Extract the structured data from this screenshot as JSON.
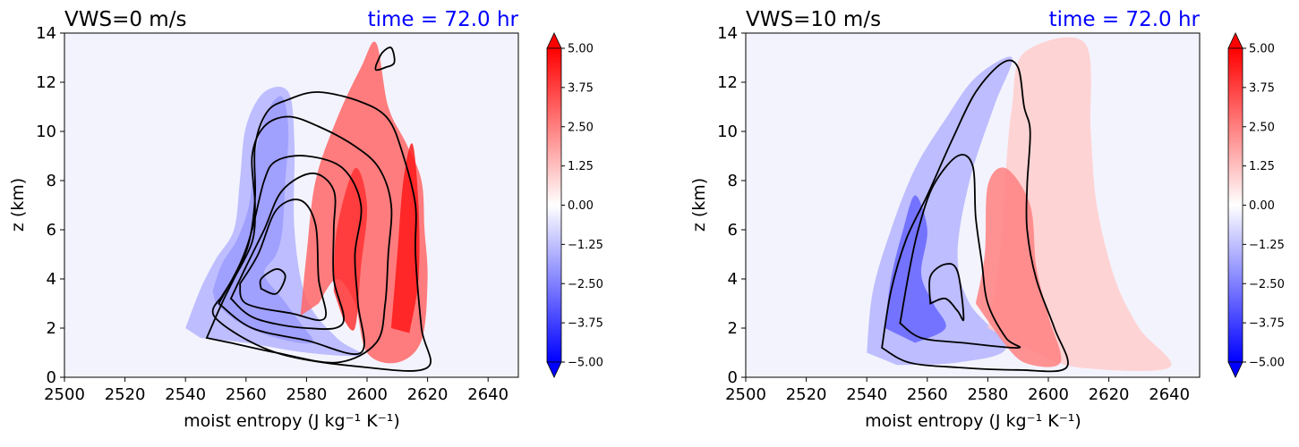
{
  "colors": {
    "background_field": "#f3f3fd",
    "time_title": "#0000ff",
    "contour": "#000000"
  },
  "colorbar": {
    "ticks": [
      5.0,
      3.75,
      2.5,
      1.25,
      0.0,
      -1.25,
      -2.5,
      -3.75,
      -5.0
    ],
    "tick_labels": [
      "5.00",
      "3.75",
      "2.50",
      "1.25",
      "0.00",
      "−1.25",
      "−2.50",
      "−3.75",
      "−5.00"
    ],
    "range": [
      -5.0,
      5.0
    ],
    "colormap": "bwr",
    "extend": "both"
  },
  "chart_data": [
    {
      "type": "contourf",
      "title_left": "VWS=0 m/s",
      "title_right": "time = 72.0 hr",
      "xlabel": "moist entropy (J kg⁻¹ K⁻¹)",
      "ylabel": "z (km)",
      "xlim": [
        2500,
        2650
      ],
      "ylim": [
        0,
        14
      ],
      "x_ticks": [
        2500,
        2520,
        2540,
        2560,
        2580,
        2600,
        2620,
        2640
      ],
      "y_ticks": [
        0,
        2,
        4,
        6,
        8,
        10,
        12,
        14
      ],
      "filled_regions": [
        {
          "name": "negative",
          "value": -4.5,
          "points": [
            [
              2549,
              3.5
            ],
            [
              2552,
              4.6
            ],
            [
              2557,
              5.6
            ],
            [
              2561,
              7.0
            ],
            [
              2563,
              9.0
            ],
            [
              2567,
              10.8
            ],
            [
              2572,
              11.4
            ],
            [
              2574,
              10.0
            ],
            [
              2573,
              8.0
            ],
            [
              2572,
              6.0
            ],
            [
              2570,
              5.0
            ],
            [
              2566,
              4.2
            ],
            [
              2572,
              3.2
            ],
            [
              2578,
              2.2
            ],
            [
              2582,
              1.4
            ],
            [
              2570,
              1.6
            ],
            [
              2558,
              2.2
            ],
            [
              2550,
              3.0
            ]
          ]
        },
        {
          "name": "negative-light",
          "value": -1.5,
          "points": [
            [
              2540,
              2.0
            ],
            [
              2545,
              3.6
            ],
            [
              2550,
              4.8
            ],
            [
              2556,
              6.0
            ],
            [
              2558,
              8.0
            ],
            [
              2560,
              10.2
            ],
            [
              2566,
              11.6
            ],
            [
              2574,
              11.6
            ],
            [
              2576,
              9.5
            ],
            [
              2576,
              6.0
            ],
            [
              2580,
              3.2
            ],
            [
              2590,
              1.6
            ],
            [
              2598,
              0.9
            ],
            [
              2580,
              1.0
            ],
            [
              2560,
              1.4
            ],
            [
              2545,
              1.6
            ]
          ]
        },
        {
          "name": "positive",
          "value": 3.0,
          "points": [
            [
              2578,
              2.5
            ],
            [
              2580,
              5.0
            ],
            [
              2583,
              8.0
            ],
            [
              2590,
              10.5
            ],
            [
              2598,
              12.6
            ],
            [
              2603,
              13.6
            ],
            [
              2607,
              11.0
            ],
            [
              2613,
              9.5
            ],
            [
              2618,
              8.0
            ],
            [
              2619,
              6.0
            ],
            [
              2620,
              4.0
            ],
            [
              2618,
              1.5
            ],
            [
              2610,
              0.6
            ],
            [
              2600,
              1.0
            ],
            [
              2596,
              3.0
            ],
            [
              2590,
              4.0
            ],
            [
              2584,
              3.0
            ]
          ]
        },
        {
          "name": "positive-strong",
          "value": 4.5,
          "points": [
            [
              2608,
              2.0
            ],
            [
              2610,
              5.0
            ],
            [
              2612,
              8.0
            ],
            [
              2615,
              9.5
            ],
            [
              2617,
              7.0
            ],
            [
              2617,
              4.0
            ],
            [
              2614,
              1.8
            ]
          ]
        },
        {
          "name": "positive-strong-2",
          "value": 4.0,
          "points": [
            [
              2589,
              3.5
            ],
            [
              2590,
              6.0
            ],
            [
              2596,
              8.5
            ],
            [
              2600,
              7.0
            ],
            [
              2598,
              4.5
            ],
            [
              2596,
              2.0
            ],
            [
              2592,
              2.4
            ]
          ]
        }
      ],
      "contours": [
        [
          [
            2547,
            1.6
          ],
          [
            2552,
            3.0
          ],
          [
            2556,
            4.0
          ],
          [
            2562,
            5.5
          ],
          [
            2563,
            7.0
          ],
          [
            2562,
            9.0
          ],
          [
            2566,
            10.2
          ],
          [
            2574,
            10.6
          ],
          [
            2584,
            10.2
          ],
          [
            2596,
            9.4
          ],
          [
            2604,
            8.5
          ],
          [
            2608,
            7.0
          ],
          [
            2607,
            5.0
          ],
          [
            2606,
            3.0
          ],
          [
            2603,
            1.4
          ],
          [
            2590,
            0.6
          ],
          [
            2570,
            1.0
          ],
          [
            2555,
            1.4
          ],
          [
            2547,
            1.6
          ]
        ],
        [
          [
            2551,
            3.0
          ],
          [
            2558,
            4.6
          ],
          [
            2562,
            6.0
          ],
          [
            2566,
            8.0
          ],
          [
            2570,
            8.8
          ],
          [
            2580,
            9.0
          ],
          [
            2592,
            8.5
          ],
          [
            2598,
            7.0
          ],
          [
            2596,
            5.0
          ],
          [
            2597,
            3.0
          ],
          [
            2598,
            1.0
          ],
          [
            2580,
            1.5
          ],
          [
            2562,
            2.0
          ],
          [
            2551,
            3.0
          ]
        ],
        [
          [
            2555,
            3.2
          ],
          [
            2560,
            4.5
          ],
          [
            2566,
            6.0
          ],
          [
            2572,
            7.6
          ],
          [
            2582,
            8.3
          ],
          [
            2589,
            7.6
          ],
          [
            2589,
            6.0
          ],
          [
            2589,
            4.0
          ],
          [
            2592,
            2.2
          ],
          [
            2580,
            2.0
          ],
          [
            2563,
            2.4
          ],
          [
            2555,
            3.2
          ]
        ],
        [
          [
            2558,
            3.8
          ],
          [
            2564,
            5.0
          ],
          [
            2570,
            6.8
          ],
          [
            2578,
            7.2
          ],
          [
            2583,
            6.2
          ],
          [
            2584,
            4.0
          ],
          [
            2586,
            2.4
          ],
          [
            2575,
            2.6
          ],
          [
            2560,
            3.0
          ],
          [
            2558,
            3.8
          ]
        ],
        [
          [
            2565,
            3.6
          ],
          [
            2570,
            3.4
          ],
          [
            2573,
            4.1
          ],
          [
            2570,
            4.4
          ],
          [
            2565,
            4.0
          ],
          [
            2565,
            3.6
          ]
        ],
        [
          [
            2552,
            3.3
          ],
          [
            2557,
            4.3
          ],
          [
            2561,
            5.5
          ],
          [
            2563,
            7.3
          ],
          [
            2563,
            9.4
          ],
          [
            2567,
            10.8
          ],
          [
            2574,
            11.3
          ],
          [
            2584,
            11.6
          ],
          [
            2598,
            11.2
          ],
          [
            2607,
            10.5
          ],
          [
            2612,
            9.0
          ],
          [
            2616,
            7.0
          ],
          [
            2616,
            5.0
          ],
          [
            2618,
            2.0
          ],
          [
            2620,
            0.4
          ],
          [
            2600,
            0.4
          ],
          [
            2570,
            1.0
          ],
          [
            2550,
            2.4
          ],
          [
            2552,
            3.3
          ]
        ],
        [
          [
            2603,
            12.7
          ],
          [
            2605,
            13.2
          ],
          [
            2608,
            13.4
          ],
          [
            2609,
            12.8
          ],
          [
            2606,
            12.6
          ],
          [
            2603,
            12.5
          ],
          [
            2603,
            12.7
          ]
        ]
      ]
    },
    {
      "type": "contourf",
      "title_left": "VWS=10 m/s",
      "title_right": "time = 72.0 hr",
      "xlabel": "moist entropy (J kg⁻¹ K⁻¹)",
      "ylabel": "z (km)",
      "xlim": [
        2500,
        2650
      ],
      "ylim": [
        0,
        14
      ],
      "x_ticks": [
        2500,
        2520,
        2540,
        2560,
        2580,
        2600,
        2620,
        2640
      ],
      "y_ticks": [
        0,
        2,
        4,
        6,
        8,
        10,
        12,
        14
      ],
      "filled_regions": [
        {
          "name": "negative-light",
          "value": -1.5,
          "points": [
            [
              2540,
              1.0
            ],
            [
              2542,
              3.5
            ],
            [
              2548,
              6.0
            ],
            [
              2556,
              8.5
            ],
            [
              2566,
              10.5
            ],
            [
              2576,
              12.2
            ],
            [
              2588,
              13.0
            ],
            [
              2582,
              11.0
            ],
            [
              2574,
              8.0
            ],
            [
              2570,
              5.0
            ],
            [
              2574,
              3.0
            ],
            [
              2586,
              1.2
            ],
            [
              2570,
              0.6
            ],
            [
              2550,
              0.5
            ]
          ]
        },
        {
          "name": "negative",
          "value": -3.0,
          "points": [
            [
              2546,
              2.0
            ],
            [
              2548,
              4.0
            ],
            [
              2552,
              6.0
            ],
            [
              2556,
              7.4
            ],
            [
              2560,
              6.0
            ],
            [
              2558,
              4.2
            ],
            [
              2562,
              3.0
            ],
            [
              2566,
              2.0
            ],
            [
              2556,
              1.4
            ]
          ]
        },
        {
          "name": "positive-light",
          "value": 1.0,
          "points": [
            [
              2580,
              2.0
            ],
            [
              2584,
              5.0
            ],
            [
              2586,
              8.5
            ],
            [
              2588,
              11.0
            ],
            [
              2592,
              13.2
            ],
            [
              2612,
              13.6
            ],
            [
              2614,
              10.0
            ],
            [
              2616,
              7.0
            ],
            [
              2622,
              4.0
            ],
            [
              2630,
              2.0
            ],
            [
              2640,
              0.4
            ],
            [
              2610,
              0.4
            ],
            [
              2596,
              1.0
            ]
          ]
        },
        {
          "name": "positive",
          "value": 2.5,
          "points": [
            [
              2576,
              3.0
            ],
            [
              2579,
              5.0
            ],
            [
              2580,
              7.8
            ],
            [
              2586,
              8.5
            ],
            [
              2594,
              7.0
            ],
            [
              2596,
              4.5
            ],
            [
              2600,
              2.5
            ],
            [
              2604,
              0.6
            ],
            [
              2592,
              0.6
            ],
            [
              2584,
              1.6
            ]
          ]
        }
      ],
      "contours": [
        [
          [
            2545,
            1.2
          ],
          [
            2548,
            3.5
          ],
          [
            2553,
            5.6
          ],
          [
            2560,
            7.4
          ],
          [
            2568,
            9.6
          ],
          [
            2576,
            11.6
          ],
          [
            2585,
            12.8
          ],
          [
            2590,
            12.6
          ],
          [
            2592,
            11.0
          ],
          [
            2594,
            10.0
          ],
          [
            2593,
            7.8
          ],
          [
            2593,
            6.0
          ],
          [
            2596,
            4.0
          ],
          [
            2602,
            2.0
          ],
          [
            2606,
            0.4
          ],
          [
            2590,
            0.3
          ],
          [
            2570,
            0.4
          ],
          [
            2554,
            0.6
          ],
          [
            2545,
            1.2
          ]
        ],
        [
          [
            2551,
            2.2
          ],
          [
            2554,
            4.3
          ],
          [
            2557,
            6.0
          ],
          [
            2562,
            7.8
          ],
          [
            2570,
            9.0
          ],
          [
            2575,
            8.6
          ],
          [
            2576,
            6.5
          ],
          [
            2578,
            4.7
          ],
          [
            2580,
            3.0
          ],
          [
            2586,
            1.6
          ],
          [
            2590,
            1.2
          ],
          [
            2572,
            1.4
          ],
          [
            2558,
            1.6
          ],
          [
            2551,
            2.2
          ]
        ],
        [
          [
            2561,
            3.0
          ],
          [
            2561,
            4.1
          ],
          [
            2566,
            4.6
          ],
          [
            2570,
            4.3
          ],
          [
            2572,
            2.4
          ],
          [
            2570,
            2.7
          ],
          [
            2566,
            3.2
          ],
          [
            2561,
            3.0
          ]
        ]
      ]
    }
  ]
}
